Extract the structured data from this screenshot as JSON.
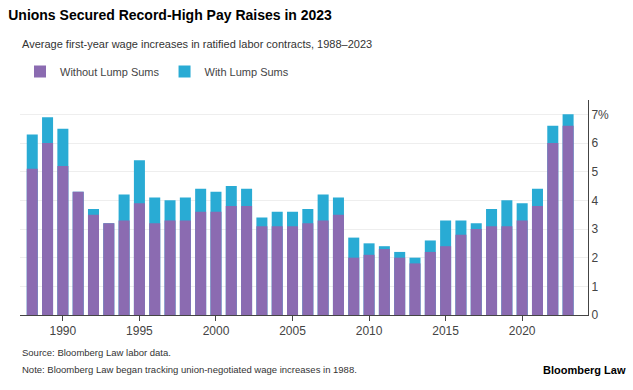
{
  "chart_data": {
    "type": "bar",
    "title": "Unions Secured Record-High Pay Raises in 2023",
    "subtitle": "Average first-year wage increases in ratified labor contracts, 1988–2023",
    "annotations": [
      "Source: Bloomberg Law labor data.",
      "Note: Bloomberg Law began tracking union-negotiated wage increases in 1988.",
      "Bloomberg Law"
    ],
    "x": [
      1988,
      1989,
      1990,
      1991,
      1992,
      1993,
      1994,
      1995,
      1996,
      1997,
      1998,
      1999,
      2000,
      2001,
      2002,
      2003,
      2004,
      2005,
      2006,
      2007,
      2008,
      2009,
      2010,
      2011,
      2012,
      2013,
      2014,
      2015,
      2016,
      2017,
      2018,
      2019,
      2020,
      2021,
      2022,
      2023
    ],
    "series": [
      {
        "name": "With Lump Sums",
        "color": "#29ABD4",
        "values": [
          6.3,
          6.9,
          6.5,
          4.3,
          3.7,
          3.2,
          4.2,
          5.4,
          4.1,
          4.0,
          4.1,
          4.4,
          4.3,
          4.5,
          4.4,
          3.4,
          3.6,
          3.6,
          3.7,
          4.2,
          4.1,
          2.7,
          2.5,
          2.4,
          2.2,
          2.0,
          2.6,
          3.3,
          3.3,
          3.2,
          3.7,
          4.0,
          3.9,
          4.4,
          6.6,
          7.0
        ]
      },
      {
        "name": "Without Lump Sums",
        "color": "#8B6BB1",
        "values": [
          5.1,
          6.0,
          5.2,
          4.3,
          3.5,
          3.2,
          3.3,
          3.9,
          3.2,
          3.3,
          3.3,
          3.6,
          3.6,
          3.8,
          3.8,
          3.1,
          3.1,
          3.1,
          3.2,
          3.3,
          3.5,
          2.0,
          2.1,
          2.3,
          2.0,
          1.8,
          2.2,
          2.4,
          2.8,
          3.0,
          3.1,
          3.1,
          3.3,
          3.8,
          6.0,
          6.6
        ]
      }
    ],
    "xlim": [
      1987.2,
      2024.3
    ],
    "xticks": [
      1990,
      1995,
      2000,
      2005,
      2010,
      2015,
      2020
    ],
    "ylim": [
      0,
      7.5
    ],
    "yticks": [
      0,
      1,
      2,
      3,
      4,
      5,
      6,
      {
        "value": 7,
        "label": "7%"
      }
    ],
    "grid": true,
    "legend": "upper left"
  }
}
